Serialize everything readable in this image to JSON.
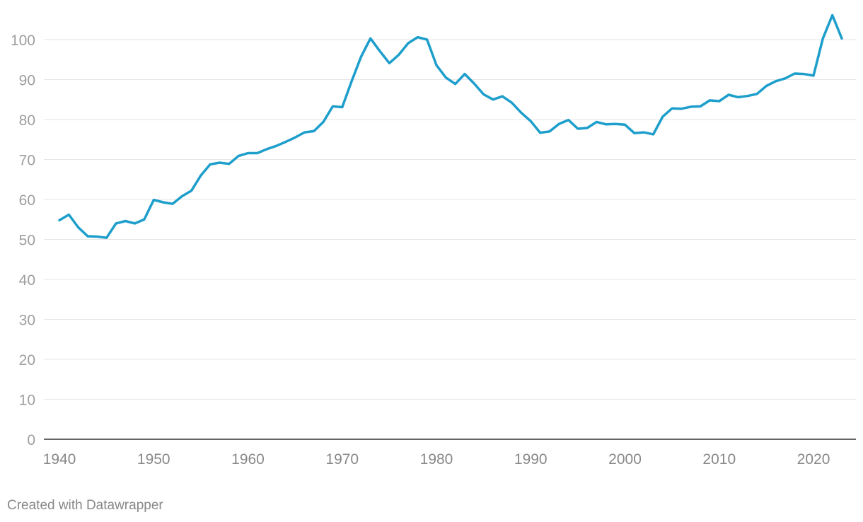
{
  "footer": {
    "credit": "Created with Datawrapper"
  },
  "chart_data": {
    "type": "line",
    "title": "",
    "xlabel": "",
    "ylabel": "",
    "xlim": [
      1940,
      2023
    ],
    "ylim": [
      0,
      106
    ],
    "xticks": [
      1940,
      1950,
      1960,
      1970,
      1980,
      1990,
      2000,
      2010,
      2020
    ],
    "yticks": [
      0,
      10,
      20,
      30,
      40,
      50,
      60,
      70,
      80,
      90,
      100
    ],
    "grid": true,
    "line_color": "#1d9ecb",
    "series": [
      {
        "x": [
          1940,
          1941,
          1942,
          1943,
          1944,
          1945,
          1946,
          1947,
          1948,
          1949,
          1950,
          1951,
          1952,
          1953,
          1954,
          1955,
          1956,
          1957,
          1958,
          1959,
          1960,
          1961,
          1962,
          1963,
          1964,
          1965,
          1966,
          1967,
          1968,
          1969,
          1970,
          1971,
          1972,
          1973,
          1974,
          1975,
          1976,
          1977,
          1978,
          1979,
          1980,
          1981,
          1982,
          1983,
          1984,
          1985,
          1986,
          1987,
          1988,
          1989,
          1990,
          1991,
          1992,
          1993,
          1994,
          1995,
          1996,
          1997,
          1998,
          1999,
          2000,
          2001,
          2002,
          2003,
          2004,
          2005,
          2006,
          2007,
          2008,
          2009,
          2010,
          2011,
          2012,
          2013,
          2014,
          2015,
          2016,
          2017,
          2018,
          2019,
          2020,
          2021,
          2022,
          2023
        ],
        "values": [
          54.8,
          56.2,
          53.0,
          50.8,
          50.7,
          50.4,
          54.0,
          54.6,
          54.0,
          55.0,
          59.9,
          59.3,
          58.9,
          60.8,
          62.2,
          66.0,
          68.8,
          69.2,
          68.9,
          70.9,
          71.6,
          71.6,
          72.6,
          73.4,
          74.4,
          75.5,
          76.8,
          77.1,
          79.4,
          83.3,
          83.1,
          89.6,
          95.7,
          100.3,
          97.1,
          94.1,
          96.2,
          99.1,
          100.6,
          100.0,
          93.6,
          90.5,
          88.9,
          91.4,
          89.0,
          86.3,
          85.0,
          85.8,
          84.2,
          81.7,
          79.6,
          76.7,
          77.0,
          78.9,
          79.9,
          77.7,
          77.9,
          79.4,
          78.8,
          78.9,
          78.7,
          76.6,
          76.8,
          76.3,
          80.7,
          82.8,
          82.7,
          83.2,
          83.3,
          84.8,
          84.6,
          86.2,
          85.6,
          85.9,
          86.4,
          88.4,
          89.6,
          90.3,
          91.5,
          91.4,
          91.0,
          100.3,
          106.1,
          100.3
        ]
      }
    ]
  }
}
